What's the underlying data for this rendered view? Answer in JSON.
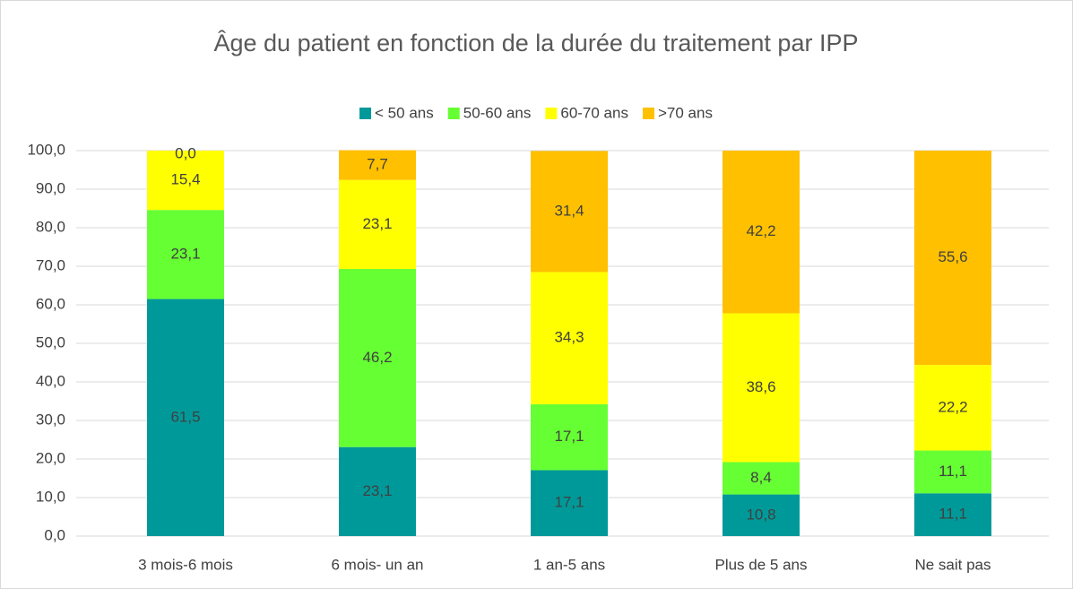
{
  "chart_data": {
    "type": "stacked_bar",
    "title": "Âge du patient en fonction de la durée du traitement par IPP",
    "categories": [
      "3 mois-6 mois",
      "6 mois- un an",
      "1 an-5 ans",
      "Plus de 5 ans",
      "Ne sait pas"
    ],
    "series": [
      {
        "name": "< 50 ans",
        "color": "#009999",
        "values": [
          61.5,
          23.1,
          17.1,
          10.8,
          11.1
        ],
        "value_labels": [
          "61,5",
          "23,1",
          "17,1",
          "10,8",
          "11,1"
        ]
      },
      {
        "name": "50-60 ans",
        "color": "#66ff33",
        "values": [
          23.1,
          46.2,
          17.1,
          8.4,
          11.1
        ],
        "value_labels": [
          "23,1",
          "46,2",
          "17,1",
          "8,4",
          "11,1"
        ]
      },
      {
        "name": "60-70 ans",
        "color": "#ffff00",
        "values": [
          15.4,
          23.1,
          34.3,
          38.6,
          22.2
        ],
        "value_labels": [
          "15,4",
          "23,1",
          "34,3",
          "38,6",
          "22,2"
        ]
      },
      {
        "name": ">70 ans",
        "color": "#ffc000",
        "values": [
          0.0,
          7.7,
          31.4,
          42.2,
          55.6
        ],
        "value_labels": [
          "0,0",
          "7,7",
          "31,4",
          "42,2",
          "55,6"
        ]
      }
    ],
    "ylim": [
      0,
      100
    ],
    "yticks": [
      {
        "value": 0,
        "label": "0,0"
      },
      {
        "value": 10,
        "label": "10,0"
      },
      {
        "value": 20,
        "label": "20,0"
      },
      {
        "value": 30,
        "label": "30,0"
      },
      {
        "value": 40,
        "label": "40,0"
      },
      {
        "value": 50,
        "label": "50,0"
      },
      {
        "value": 60,
        "label": "60,0"
      },
      {
        "value": 70,
        "label": "70,0"
      },
      {
        "value": 80,
        "label": "80,0"
      },
      {
        "value": 90,
        "label": "90,0"
      },
      {
        "value": 100,
        "label": "100,0"
      }
    ],
    "grid": true,
    "legend": "top"
  }
}
